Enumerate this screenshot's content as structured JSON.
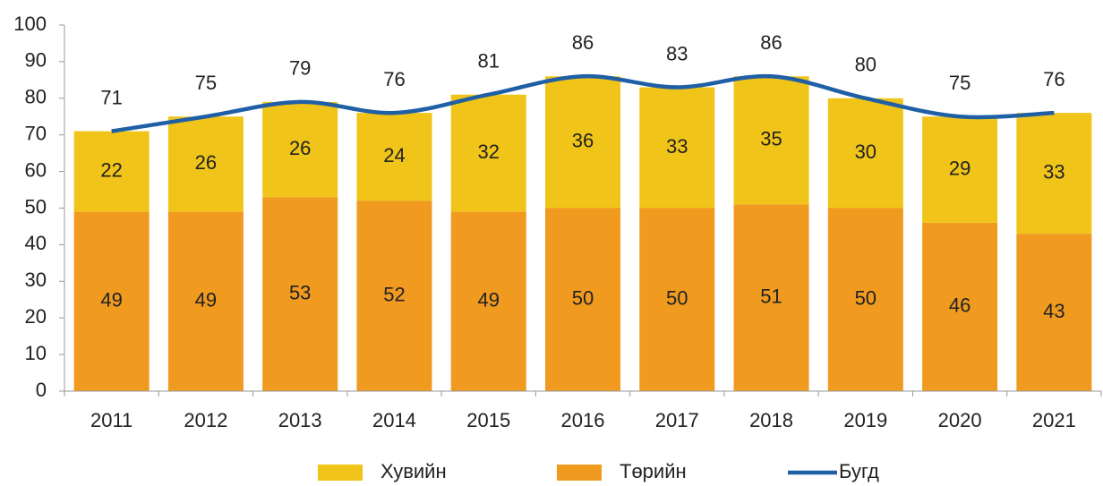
{
  "chart_data": {
    "type": "bar",
    "stacked": true,
    "categories": [
      "2011",
      "2012",
      "2013",
      "2014",
      "2015",
      "2016",
      "2017",
      "2018",
      "2019",
      "2020",
      "2021"
    ],
    "series": [
      {
        "name": "Хувийн",
        "type": "bar",
        "color": "#f0c419",
        "values": [
          22,
          26,
          26,
          24,
          32,
          36,
          33,
          35,
          30,
          29,
          33
        ]
      },
      {
        "name": "Төрийн",
        "type": "bar",
        "color": "#f09a20",
        "values": [
          49,
          49,
          53,
          52,
          49,
          50,
          50,
          51,
          50,
          46,
          43
        ]
      },
      {
        "name": "Бугд",
        "type": "line",
        "color": "#1f5fa6",
        "values": [
          71,
          75,
          79,
          76,
          81,
          86,
          83,
          86,
          80,
          75,
          76
        ]
      }
    ],
    "ylim": [
      0,
      100
    ],
    "yticks": [
      0,
      10,
      20,
      30,
      40,
      50,
      60,
      70,
      80,
      90,
      100
    ],
    "legend": "bottom"
  }
}
